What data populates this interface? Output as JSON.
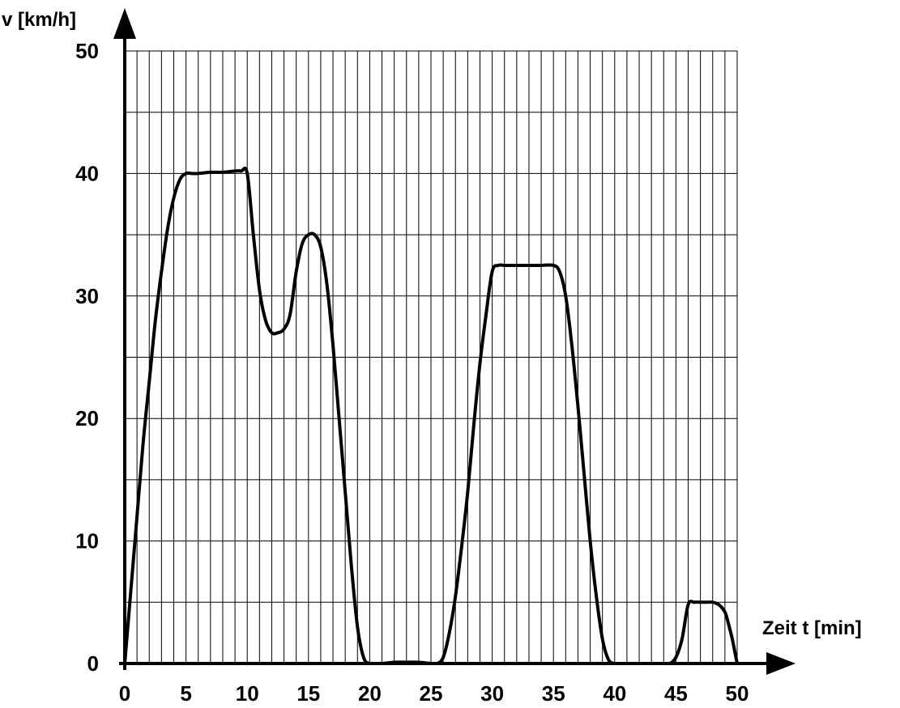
{
  "chart_data": {
    "type": "line",
    "title": "",
    "xlabel": "Zeit t [min]",
    "ylabel": "v [km/h]",
    "xlim": [
      0,
      50
    ],
    "ylim": [
      0,
      50
    ],
    "x_ticks": [
      0,
      5,
      10,
      15,
      20,
      25,
      30,
      35,
      40,
      45,
      50
    ],
    "y_ticks": [
      0,
      10,
      20,
      30,
      40,
      50
    ],
    "grid": true,
    "legend": "none",
    "series": [
      {
        "x": [
          0,
          0.5,
          1,
          1.5,
          2,
          2.5,
          3,
          3.5,
          4,
          4.5,
          5,
          5.5,
          6,
          7,
          8,
          9,
          9.5,
          10,
          10.5,
          11,
          11.5,
          12,
          12.5,
          13,
          13.5,
          14,
          14.5,
          15,
          15.5,
          16,
          16.5,
          17,
          17.5,
          18,
          18.5,
          19,
          19.5,
          20,
          21,
          22,
          23,
          24,
          25,
          25.5,
          26,
          26.5,
          27,
          27.5,
          28,
          28.5,
          29,
          29.5,
          30,
          30.5,
          31,
          32,
          33,
          34,
          35,
          35.5,
          36,
          36.5,
          37,
          37.5,
          38,
          38.5,
          39,
          39.5,
          40,
          41,
          42,
          43,
          44,
          44.5,
          45,
          45.5,
          46,
          46.5,
          47,
          47.5,
          48,
          48.5,
          49,
          49.3,
          49.6,
          49.8,
          50
        ],
        "y": [
          0,
          6,
          12,
          18,
          23,
          28,
          32,
          35.5,
          38,
          39.5,
          40,
          40,
          40,
          40.1,
          40.1,
          40.2,
          40.2,
          40,
          35,
          30.5,
          28,
          27,
          27,
          27.3,
          28.5,
          32,
          34.3,
          35,
          35,
          34,
          31,
          26,
          20,
          14,
          8,
          3,
          0.5,
          0,
          0,
          0.1,
          0.1,
          0.1,
          0,
          0,
          0.5,
          2.5,
          5.5,
          9.5,
          14,
          19.5,
          24.5,
          28.5,
          32,
          32.5,
          32.5,
          32.5,
          32.5,
          32.5,
          32.5,
          32,
          30,
          26,
          21,
          15.5,
          10,
          5.5,
          2,
          0.3,
          0,
          0,
          0,
          0,
          0,
          0,
          0.5,
          2,
          4.8,
          5,
          5,
          5,
          5,
          4.8,
          4.2,
          3.2,
          2,
          1,
          0
        ]
      }
    ]
  }
}
